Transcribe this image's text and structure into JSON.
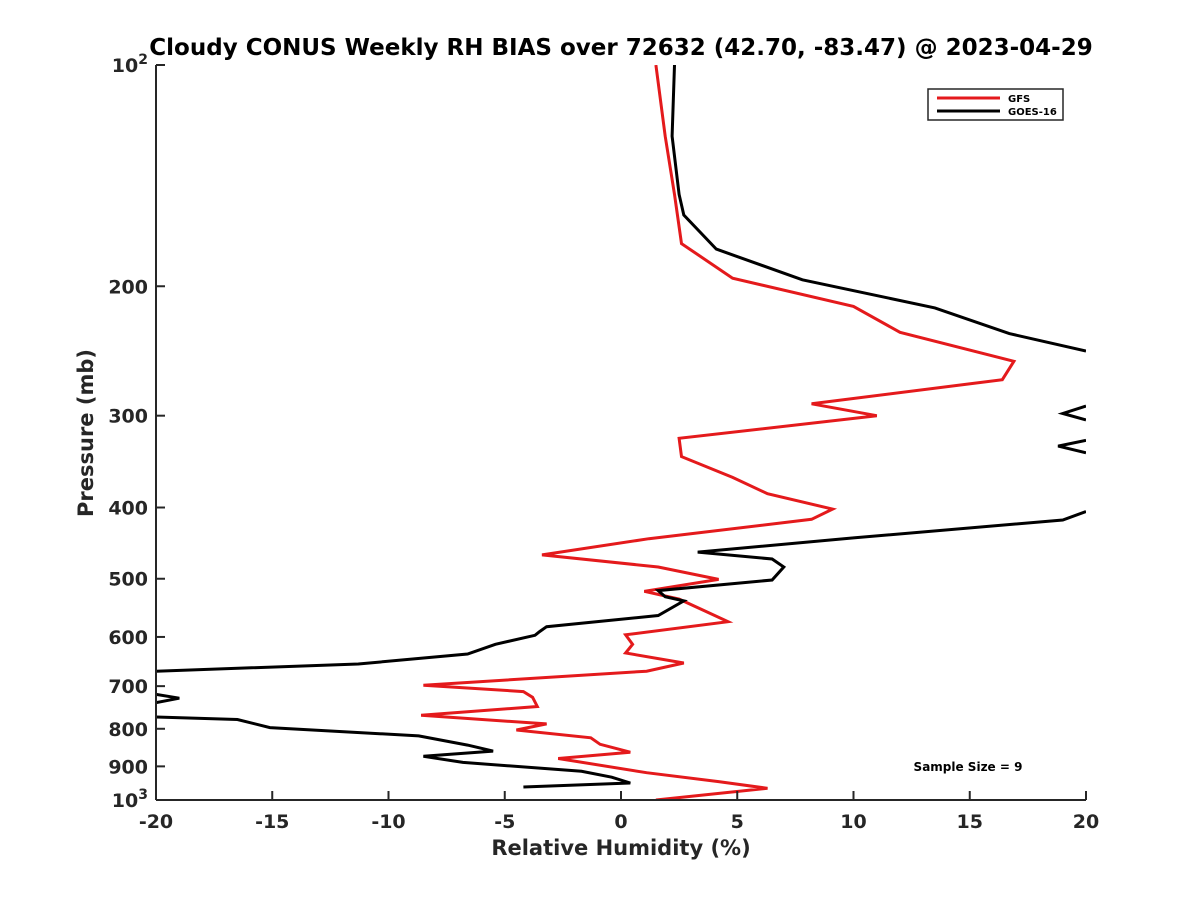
{
  "chart_data": {
    "type": "line",
    "title": "Cloudy CONUS Weekly RH BIAS over 72632 (42.70, -83.47) @ 2023-04-29",
    "xlabel": "Relative Humidity (%)",
    "ylabel": "Pressure (mb)",
    "xlim": [
      -20,
      20
    ],
    "ylim": [
      100,
      1000
    ],
    "y_scale": "log",
    "y_reversed": true,
    "grid": false,
    "legend_position": "top-right",
    "x_ticks": [
      "-20",
      "-15",
      "-10",
      "-5",
      "0",
      "5",
      "10",
      "15",
      "20"
    ],
    "y_ticks": [
      {
        "value": 100,
        "label": "10",
        "sup": "2"
      },
      {
        "value": 200,
        "label": "200"
      },
      {
        "value": 300,
        "label": "300"
      },
      {
        "value": 400,
        "label": "400"
      },
      {
        "value": 500,
        "label": "500"
      },
      {
        "value": 600,
        "label": "600"
      },
      {
        "value": 700,
        "label": "700"
      },
      {
        "value": 800,
        "label": "800"
      },
      {
        "value": 900,
        "label": "900"
      },
      {
        "value": 1000,
        "label": "10",
        "sup": "3"
      }
    ],
    "annotation": "Sample Size = 9",
    "series": [
      {
        "name": "GFS",
        "color": "#e41a1c",
        "points": [
          [
            1.5,
            100
          ],
          [
            1.9,
            125
          ],
          [
            2.3,
            150
          ],
          [
            2.6,
            175
          ],
          [
            4.8,
            195
          ],
          [
            10,
            213
          ],
          [
            12,
            231
          ],
          [
            16.9,
            253
          ],
          [
            16.4,
            268
          ],
          [
            8.2,
            289
          ],
          [
            11,
            300
          ],
          [
            2.5,
            322
          ],
          [
            2.6,
            341
          ],
          [
            4.8,
            364
          ],
          [
            6.3,
            383
          ],
          [
            9.1,
            402
          ],
          [
            8.2,
            415
          ],
          [
            1.2,
            441
          ],
          [
            -3.4,
            464
          ],
          [
            1.6,
            482
          ],
          [
            4.2,
            501
          ],
          [
            1,
            520
          ],
          [
            2.5,
            533
          ],
          [
            3.6,
            553
          ],
          [
            4.6,
            572
          ],
          [
            0.2,
            596
          ],
          [
            0.5,
            614
          ],
          [
            0.2,
            631
          ],
          [
            2.7,
            651
          ],
          [
            1.1,
            668
          ],
          [
            -8.5,
            698
          ],
          [
            -4.2,
            712
          ],
          [
            -3.8,
            725
          ],
          [
            -3.6,
            746
          ],
          [
            -8.6,
            767
          ],
          [
            -3.2,
            788
          ],
          [
            -4.5,
            803
          ],
          [
            -1.3,
            823
          ],
          [
            -0.9,
            840
          ],
          [
            0.4,
            861
          ],
          [
            -2.7,
            878
          ],
          [
            1.1,
            918
          ],
          [
            4.2,
            944
          ],
          [
            6.3,
            964
          ],
          [
            1.5,
            1000
          ]
        ]
      },
      {
        "name": "GOES-16",
        "color": "#000000",
        "segments": [
          [
            [
              2.3,
              100
            ],
            [
              2.2,
              125
            ],
            [
              2.5,
              150
            ],
            [
              2.7,
              160
            ],
            [
              4.1,
              178
            ],
            [
              7.8,
              196
            ],
            [
              13.5,
              214
            ],
            [
              16.7,
              232
            ],
            [
              20,
              245
            ]
          ],
          [
            [
              20,
              291
            ],
            [
              19,
              298
            ],
            [
              20,
              304
            ]
          ],
          [
            [
              20,
              324
            ],
            [
              18.8,
              330
            ],
            [
              20,
              337
            ]
          ],
          [
            [
              20,
              405
            ],
            [
              19,
              416
            ],
            [
              10,
              440
            ],
            [
              3.3,
              460
            ],
            [
              6.5,
              470
            ],
            [
              7,
              482
            ],
            [
              6.5,
              502
            ],
            [
              1.6,
              519
            ],
            [
              1.9,
              529
            ],
            [
              2.7,
              536
            ],
            [
              1.6,
              561
            ],
            [
              -3.2,
              581
            ],
            [
              -3.5,
              590
            ],
            [
              -3.7,
              597
            ],
            [
              -5.4,
              614
            ],
            [
              -6.6,
              633
            ],
            [
              -11.3,
              653
            ],
            [
              -20,
              668
            ]
          ],
          [
            [
              -20,
              718
            ],
            [
              -19,
              727
            ],
            [
              -20,
              737
            ]
          ],
          [
            [
              -20,
              771
            ],
            [
              -16.5,
              777
            ],
            [
              -15.1,
              797
            ],
            [
              -8.7,
              818
            ],
            [
              -6.6,
              842
            ],
            [
              -5.5,
              858
            ],
            [
              -8.5,
              872
            ],
            [
              -6.8,
              889
            ],
            [
              -1.7,
              914
            ],
            [
              -0.4,
              931
            ],
            [
              0.4,
              948
            ],
            [
              -4.2,
              960
            ]
          ]
        ]
      }
    ]
  }
}
